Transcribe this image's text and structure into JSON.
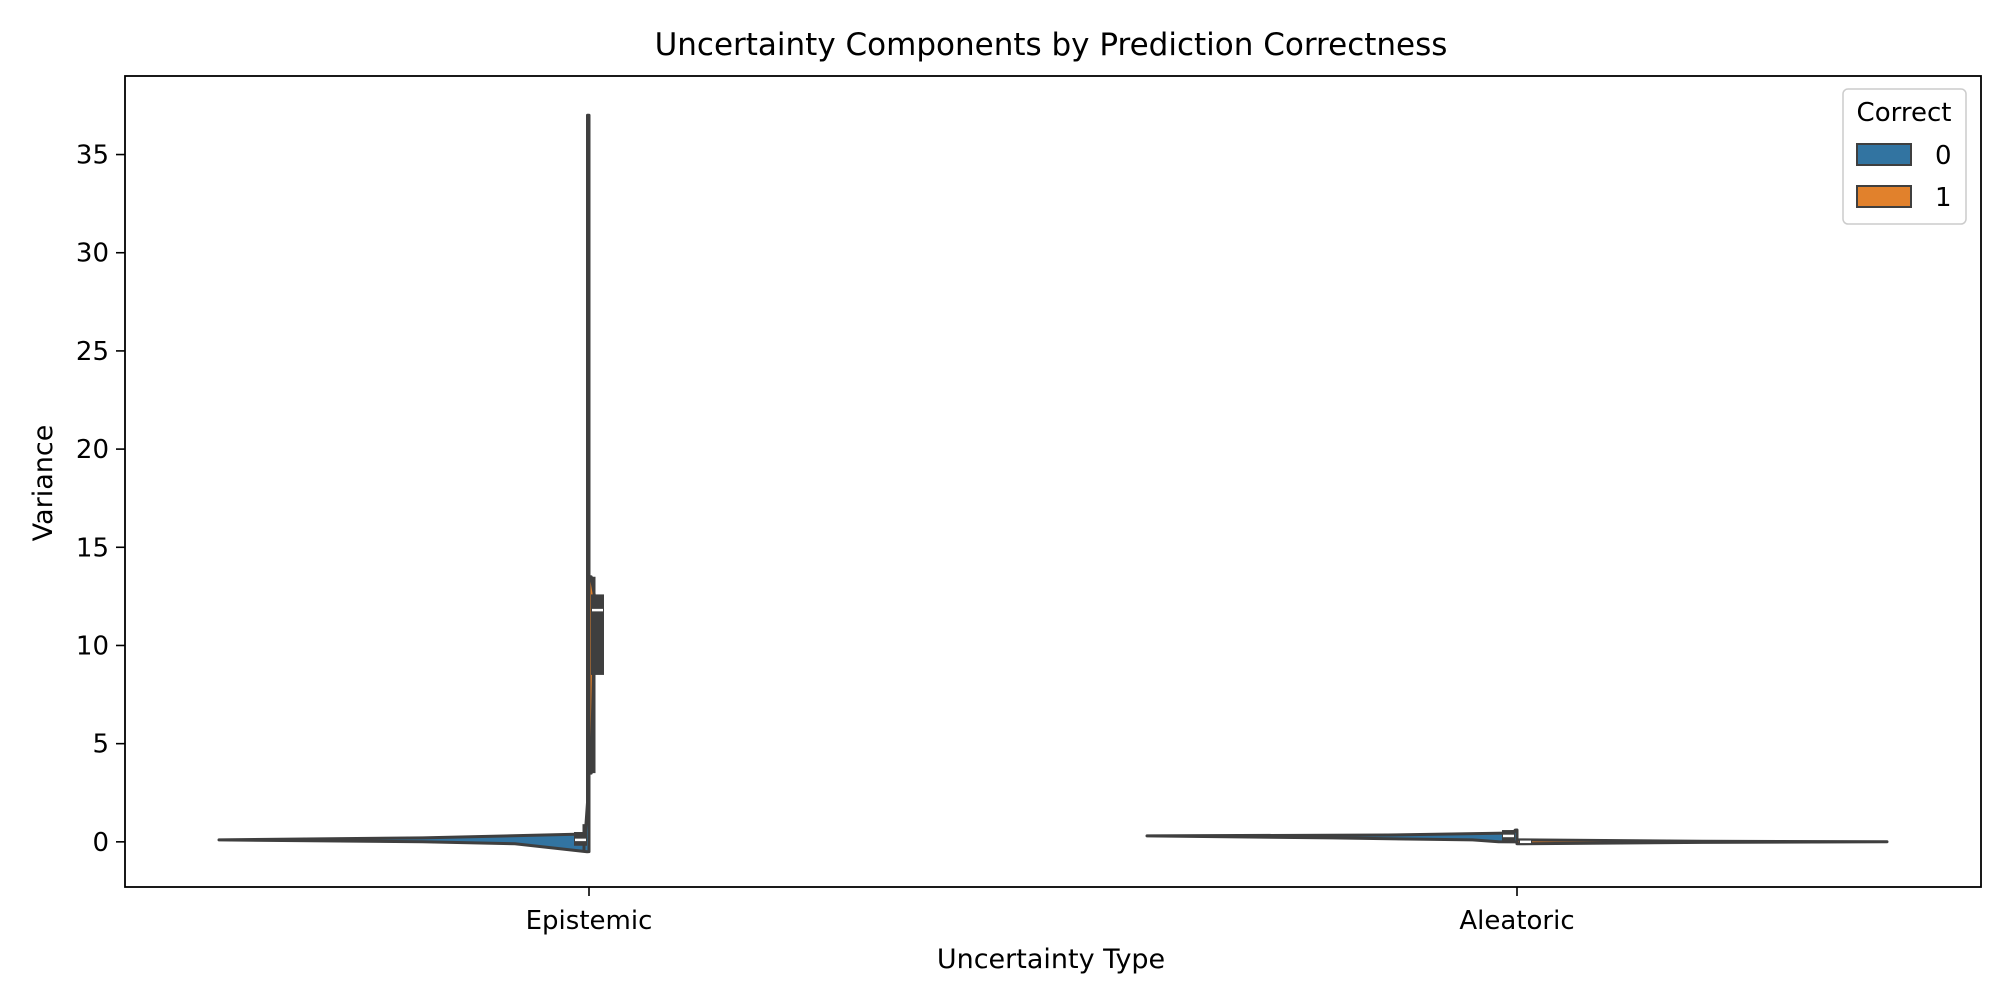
{
  "chart_data": {
    "type": "violin",
    "title": "Uncertainty Components by Prediction Correctness",
    "xlabel": "Uncertainty Type",
    "ylabel": "Variance",
    "categories": [
      "Epistemic",
      "Aleatoric"
    ],
    "ylim": [
      -2.3,
      39.0
    ],
    "yticks": [
      0,
      5,
      10,
      15,
      20,
      25,
      30,
      35
    ],
    "grid": false,
    "legend": {
      "title": "Correct",
      "placement": "top-right",
      "entries": [
        {
          "label": "0",
          "color": "#3274a1"
        },
        {
          "label": "1",
          "color": "#e1812c"
        }
      ]
    },
    "series": [
      {
        "name": "0",
        "color": "#3274a1",
        "groups": [
          {
            "category": "Epistemic",
            "min": -0.5,
            "max": 37.0,
            "q1": -0.2,
            "median": 0.1,
            "q3": 0.5,
            "whisker_low": -0.5,
            "whisker_high": 0.9,
            "shape": [
              [
                -0.5,
                0.005
              ],
              [
                -0.1,
                0.2
              ],
              [
                0.0,
                0.45
              ],
              [
                0.1,
                1.0
              ],
              [
                0.2,
                0.45
              ],
              [
                0.4,
                0.01
              ],
              [
                2,
                0.004
              ],
              [
                10,
                0.004
              ],
              [
                37.0,
                0.004
              ]
            ]
          },
          {
            "category": "Aleatoric",
            "min": 0.0,
            "max": 0.6,
            "q1": 0.0,
            "median": 0.3,
            "q3": 0.6,
            "whisker_low": 0.0,
            "whisker_high": 0.6,
            "shape": [
              [
                0.0,
                0.05
              ],
              [
                0.1,
                0.12
              ],
              [
                0.2,
                0.5
              ],
              [
                0.3,
                1.0
              ],
              [
                0.35,
                0.35
              ],
              [
                0.45,
                0.01
              ],
              [
                0.6,
                0.005
              ]
            ]
          }
        ]
      },
      {
        "name": "1",
        "color": "#e1812c",
        "groups": [
          {
            "category": "Epistemic",
            "min": 3.5,
            "max": 13.5,
            "q1": 8.5,
            "median": 11.8,
            "q3": 12.6,
            "whisker_low": 3.5,
            "whisker_high": 13.5,
            "shape": [
              [
                3.5,
                0.006
              ],
              [
                8.5,
                0.012
              ],
              [
                11.8,
                0.016
              ],
              [
                12.6,
                0.014
              ],
              [
                13.5,
                0.006
              ]
            ]
          },
          {
            "category": "Aleatoric",
            "min": -0.1,
            "max": 0.1,
            "q1": -0.05,
            "median": 0.0,
            "q3": 0.05,
            "whisker_low": -0.1,
            "whisker_high": 0.1,
            "shape": [
              [
                -0.1,
                0.02
              ],
              [
                -0.03,
                0.5
              ],
              [
                0.0,
                1.0
              ],
              [
                0.03,
                0.5
              ],
              [
                0.1,
                0.02
              ]
            ]
          }
        ]
      }
    ]
  }
}
